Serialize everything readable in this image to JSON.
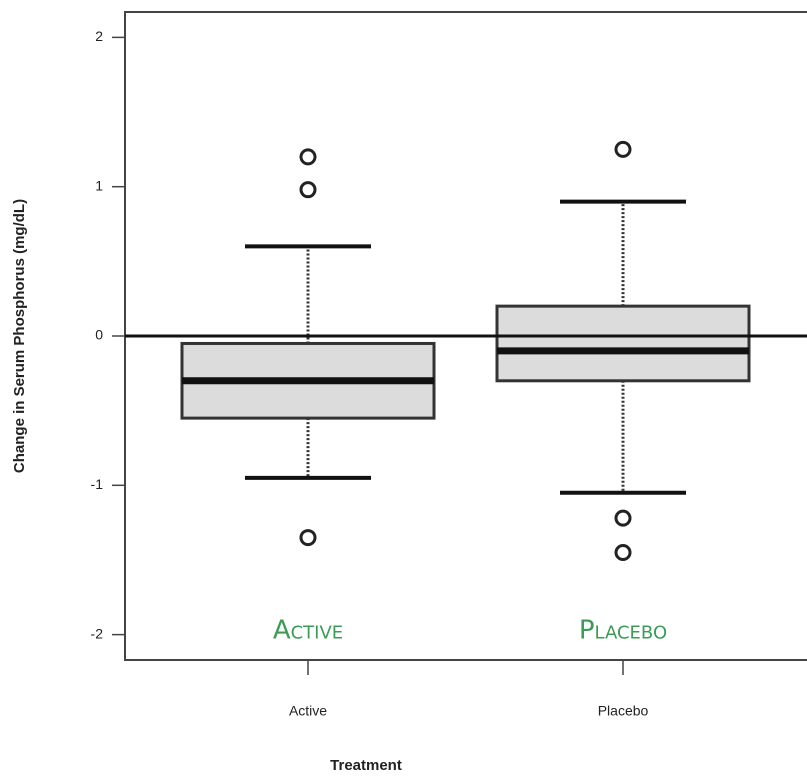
{
  "chart_data": {
    "type": "box",
    "y_label": "Change in Serum Phosphorus (mg/dL)",
    "x_label": "Treatment",
    "categories": [
      "Active",
      "Placebo"
    ],
    "boxes": [
      {
        "whisker_low": -0.95,
        "q1": -0.55,
        "median": -0.3,
        "q3": -0.05,
        "whisker_high": 0.6,
        "outliers": [
          1.2,
          0.98,
          -1.35
        ]
      },
      {
        "whisker_low": -1.05,
        "q1": -0.3,
        "median": -0.1,
        "q3": 0.2,
        "whisker_high": 0.9,
        "outliers": [
          1.25,
          -1.22,
          -1.45
        ]
      }
    ],
    "reference_line": 0,
    "annotations": [
      "Active",
      "Placebo"
    ],
    "box_color": "#dcdcdc",
    "annotation_color": "#3c9c55",
    "ylim": [
      -2.17,
      2.17
    ],
    "yticks": [
      -2,
      -1,
      0,
      1,
      2
    ]
  }
}
